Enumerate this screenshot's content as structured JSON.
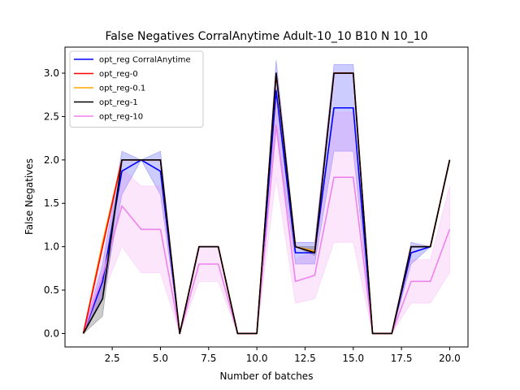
{
  "chart_data": {
    "type": "line",
    "title": "False Negatives CorralAnytime Adult-10_10 B10 N 10_10",
    "xlabel": "Number of batches",
    "ylabel": "False Negatives",
    "xlim": [
      0.05,
      20.95
    ],
    "ylim": [
      -0.155,
      3.3
    ],
    "xticks": [
      2.5,
      5.0,
      7.5,
      10.0,
      12.5,
      15.0,
      17.5,
      20.0
    ],
    "xtick_labels": [
      "2.5",
      "5.0",
      "7.5",
      "10.0",
      "12.5",
      "15.0",
      "17.5",
      "20.0"
    ],
    "yticks": [
      0.0,
      0.5,
      1.0,
      1.5,
      2.0,
      2.5,
      3.0
    ],
    "ytick_labels": [
      "0.0",
      "0.5",
      "1.0",
      "1.5",
      "2.0",
      "2.5",
      "3.0"
    ],
    "grid": false,
    "legend_position": "top-left",
    "x": [
      1,
      2,
      3,
      4,
      5,
      6,
      7,
      8,
      9,
      10,
      11,
      12,
      13,
      14,
      15,
      16,
      17,
      18,
      19,
      20
    ],
    "series": [
      {
        "name": "opt_reg CorralAnytime",
        "color": "#0000ff",
        "values": [
          0,
          0.6,
          1.87,
          2.0,
          1.87,
          0,
          1.0,
          1.0,
          0,
          0,
          2.8,
          0.93,
          0.93,
          2.6,
          2.6,
          0,
          0,
          0.93,
          1.0,
          2.0
        ],
        "lower": [
          0,
          0.4,
          1.6,
          2.0,
          1.6,
          0,
          1.0,
          1.0,
          0,
          0,
          2.4,
          0.8,
          0.8,
          2.1,
          2.1,
          0,
          0,
          0.8,
          1.0,
          2.0
        ],
        "upper": [
          0,
          0.8,
          2.1,
          2.0,
          2.1,
          0,
          1.0,
          1.0,
          0,
          0,
          3.15,
          1.05,
          1.05,
          3.1,
          3.1,
          0,
          0,
          1.05,
          1.0,
          2.0
        ]
      },
      {
        "name": "opt_reg-0",
        "color": "#ff0000",
        "values": [
          0,
          1.0,
          2.0,
          2.0,
          2.0,
          0,
          1.0,
          1.0,
          0,
          0,
          3.0,
          1.0,
          0.93,
          3.0,
          3.0,
          0,
          0,
          1.0,
          1.0,
          2.0
        ]
      },
      {
        "name": "opt_reg-0.1",
        "color": "#ffa500",
        "values": [
          0,
          1.05,
          2.0,
          2.0,
          2.0,
          0,
          1.0,
          1.0,
          0,
          0,
          3.0,
          1.0,
          0.95,
          3.0,
          3.0,
          0,
          0,
          1.0,
          1.0,
          2.0
        ]
      },
      {
        "name": "opt_reg-1",
        "color": "#000000",
        "values": [
          0,
          0.4,
          2.0,
          2.0,
          2.0,
          0,
          1.0,
          1.0,
          0,
          0,
          3.0,
          1.0,
          0.93,
          3.0,
          3.0,
          0,
          0,
          1.0,
          1.0,
          2.0
        ],
        "lower": [
          0,
          0.2,
          2.0,
          2.0,
          2.0,
          0,
          1.0,
          1.0,
          0,
          0,
          3.0,
          1.0,
          0.9,
          3.0,
          3.0,
          0,
          0,
          1.0,
          1.0,
          2.0
        ],
        "upper": [
          0,
          0.6,
          2.0,
          2.0,
          2.0,
          0,
          1.0,
          1.0,
          0,
          0,
          3.0,
          1.0,
          1.0,
          3.0,
          3.0,
          0,
          0,
          1.0,
          1.0,
          2.0
        ]
      },
      {
        "name": "opt_reg-10",
        "color": "#ee82ee",
        "values": [
          0,
          0.67,
          1.47,
          1.2,
          1.2,
          0,
          0.8,
          0.8,
          0,
          0,
          2.4,
          0.6,
          0.67,
          1.8,
          1.8,
          0,
          0,
          0.6,
          0.6,
          1.2
        ],
        "lower": [
          0,
          0.45,
          1.0,
          0.7,
          0.7,
          0,
          0.6,
          0.6,
          0,
          0,
          1.8,
          0.35,
          0.4,
          1.05,
          1.05,
          0,
          0,
          0.35,
          0.35,
          0.7
        ],
        "upper": [
          0,
          0.9,
          1.9,
          1.7,
          1.7,
          0,
          1.0,
          1.0,
          0,
          0,
          2.85,
          0.85,
          0.95,
          2.55,
          2.55,
          0,
          0,
          0.85,
          0.85,
          1.7
        ]
      }
    ]
  }
}
